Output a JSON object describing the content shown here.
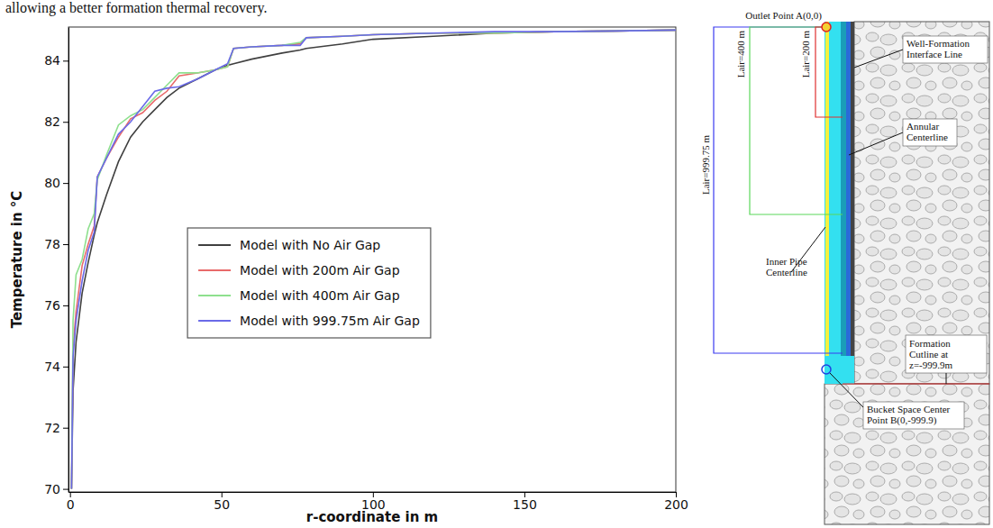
{
  "header_text": "allowing a better formation thermal recovery.",
  "chart_data": {
    "type": "line",
    "x_label": "r-coordinate in m",
    "y_label": "Temperature in °C",
    "x": [
      0.5,
      1,
      2,
      4,
      6,
      8,
      9,
      12,
      16,
      20,
      24,
      28,
      32,
      36,
      42,
      48,
      52,
      54,
      60,
      70,
      76,
      78,
      90,
      100,
      120,
      140,
      160,
      180,
      200
    ],
    "series": [
      {
        "name": "Model with No Air Gap",
        "color": "#404040",
        "values": [
          70,
          73.2,
          74.8,
          76.4,
          77.4,
          78.3,
          78.7,
          79.6,
          80.7,
          81.5,
          82.0,
          82.4,
          82.8,
          83.1,
          83.4,
          83.7,
          83.85,
          83.9,
          84.05,
          84.25,
          84.35,
          84.4,
          84.55,
          84.7,
          84.8,
          84.9,
          84.95,
          84.97,
          85
        ]
      },
      {
        "name": "Model with 200m Air Gap",
        "color": "#e86a6a",
        "values": [
          70,
          74.6,
          75.8,
          77.3,
          78.0,
          78.6,
          80.2,
          80.8,
          81.5,
          82.1,
          82.3,
          82.7,
          83.0,
          83.5,
          83.6,
          83.7,
          83.8,
          84.4,
          84.45,
          84.5,
          84.55,
          84.75,
          84.8,
          84.85,
          84.9,
          84.9,
          84.95,
          84.97,
          85
        ]
      },
      {
        "name": "Model with 400m Air Gap",
        "color": "#8ee08e",
        "values": [
          70,
          75.5,
          77.0,
          77.5,
          78.5,
          79.0,
          80.1,
          80.9,
          81.9,
          82.2,
          82.4,
          82.8,
          83.2,
          83.6,
          83.6,
          83.7,
          83.8,
          84.4,
          84.45,
          84.5,
          84.6,
          84.75,
          84.8,
          84.85,
          84.9,
          84.9,
          84.95,
          84.97,
          85
        ]
      },
      {
        "name": "Model with 999.75m Air Gap",
        "color": "#6a6ae8",
        "values": [
          70,
          74.3,
          75.5,
          76.8,
          77.8,
          78.4,
          80.2,
          80.8,
          81.6,
          82.0,
          82.5,
          83.0,
          83.1,
          83.15,
          83.4,
          83.7,
          83.9,
          84.4,
          84.45,
          84.5,
          84.5,
          84.75,
          84.8,
          84.85,
          84.9,
          84.95,
          84.95,
          84.97,
          85
        ]
      }
    ],
    "xlim": [
      -0.5,
      200
    ],
    "ylim": [
      69.9,
      85.1
    ],
    "xticks": [
      0,
      50,
      100,
      150,
      200
    ],
    "yticks": [
      70,
      72,
      74,
      76,
      78,
      80,
      82,
      84
    ],
    "grid": false,
    "legend": "center"
  },
  "diagram": {
    "labels": [
      "Outlet Point A(0,0)",
      "Lair=200 m",
      "Lair=400 m",
      "Lair=999.75 m",
      "Inner Pipe Centerline",
      "Well-Formation Interface Line",
      "Annular Centerline",
      "Formation Cutline at z=-999.9m",
      "Bucket Space Center Point B(0,-999.9)"
    ]
  }
}
